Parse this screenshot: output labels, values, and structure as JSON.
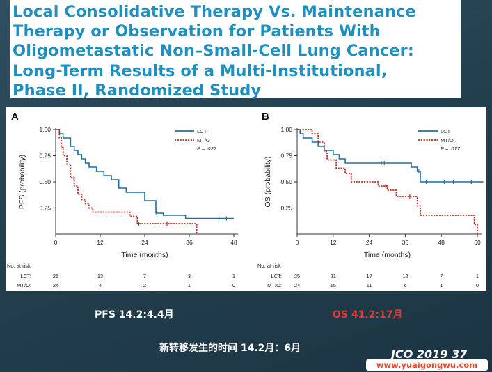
{
  "title_lines": [
    "Local Consolidative Therapy Vs. Maintenance",
    "Therapy or Observation for Patients With",
    "Oligometastatic Non–Small-Cell Lung Cancer:",
    "Long-Term Results of a Multi-Institutional,",
    "Phase II, Randomized Study"
  ],
  "colors": {
    "lct": "#1b6fa8",
    "mto": "#b53127",
    "title": "#1f8fc0",
    "os_caption": "#e43b2f"
  },
  "chart_data": [
    {
      "type": "line",
      "step": true,
      "panel": "A",
      "xlabel": "Time (months)",
      "ylabel": "PFS (probability)",
      "xticks": [
        0,
        12,
        24,
        36,
        48
      ],
      "yticks": [
        0.25,
        0.5,
        0.75,
        1.0
      ],
      "ytick_labels": [
        "0.25",
        "0.50",
        "0.75",
        "1.00"
      ],
      "xlim": [
        0,
        48
      ],
      "ylim": [
        0,
        1
      ],
      "legend": {
        "position": "top-right",
        "p_value": "P = .022"
      },
      "series": [
        {
          "name": "LCT",
          "style": "solid",
          "x": [
            0,
            1,
            2,
            4,
            5,
            6,
            7,
            8,
            9,
            11,
            13,
            15,
            17,
            19,
            24,
            27,
            29,
            35,
            48
          ],
          "y": [
            1.0,
            0.96,
            0.92,
            0.84,
            0.8,
            0.76,
            0.72,
            0.68,
            0.64,
            0.6,
            0.56,
            0.52,
            0.44,
            0.4,
            0.32,
            0.2,
            0.18,
            0.15,
            0.15
          ],
          "censor_x": [
            27.2,
            44,
            46
          ]
        },
        {
          "name": "MT/O",
          "style": "dotted",
          "x": [
            0,
            1,
            1.5,
            2,
            3,
            4,
            5,
            6,
            7,
            8,
            9,
            10,
            14,
            20,
            22,
            37,
            38
          ],
          "y": [
            1.0,
            0.92,
            0.83,
            0.75,
            0.67,
            0.54,
            0.46,
            0.38,
            0.33,
            0.29,
            0.25,
            0.21,
            0.21,
            0.17,
            0.1,
            0.1,
            0.0
          ],
          "censor_x": [
            4.9,
            22.4,
            30
          ]
        }
      ],
      "risk_table": {
        "title": "No. at risk",
        "rows": [
          {
            "label": "LCT:",
            "values": [
              "25",
              "13",
              "7",
              "3",
              "1"
            ]
          },
          {
            "label": "MT/O:",
            "values": [
              "24",
              "4",
              "2",
              "1",
              "0"
            ]
          }
        ]
      }
    },
    {
      "type": "line",
      "step": true,
      "panel": "B",
      "xlabel": "Time (months)",
      "ylabel": "OS (probability)",
      "xticks": [
        0,
        12,
        24,
        36,
        48,
        60
      ],
      "yticks": [
        0.25,
        0.5,
        0.75,
        1.0
      ],
      "ytick_labels": [
        "0.25",
        "0.50",
        "0.75",
        "1.00"
      ],
      "xlim": [
        0,
        60
      ],
      "ylim": [
        0,
        1
      ],
      "legend": {
        "position": "top-right",
        "p_value": "P = .017"
      },
      "series": [
        {
          "name": "LCT",
          "style": "solid",
          "x": [
            0,
            1,
            2,
            5,
            7,
            9,
            12,
            14,
            16,
            19,
            36,
            38,
            40,
            41,
            62
          ],
          "y": [
            1.0,
            0.96,
            0.92,
            0.88,
            0.84,
            0.8,
            0.76,
            0.72,
            0.68,
            0.68,
            0.68,
            0.64,
            0.6,
            0.5,
            0.5
          ],
          "censor_x": [
            28,
            29,
            40.5,
            43,
            49,
            52,
            58
          ]
        },
        {
          "name": "MT/O",
          "style": "dotted",
          "x": [
            0,
            5,
            7,
            9,
            10,
            13,
            16,
            18,
            27,
            30,
            33,
            36,
            38,
            40,
            41,
            59,
            60
          ],
          "y": [
            1.0,
            0.96,
            0.88,
            0.79,
            0.71,
            0.63,
            0.58,
            0.5,
            0.46,
            0.42,
            0.36,
            0.36,
            0.36,
            0.27,
            0.18,
            0.09,
            0.0
          ],
          "censor_x": [
            29.5,
            37.5
          ]
        }
      ],
      "risk_table": {
        "title": "No. at risk",
        "rows": [
          {
            "label": "LCT:",
            "values": [
              "25",
              "21",
              "17",
              "12",
              "7",
              "1"
            ]
          },
          {
            "label": "MT/O:",
            "values": [
              "24",
              "15",
              "11",
              "6",
              "1",
              "0"
            ]
          }
        ]
      }
    }
  ],
  "captions": {
    "pfs": "PFS 14.2:4.4月",
    "os": "OS 41.2:17月",
    "meta": "新转移发生的时间 14.2月：6月",
    "journal": "JCO 2019 37",
    "watermark": "www.yuaigongwu.com"
  }
}
